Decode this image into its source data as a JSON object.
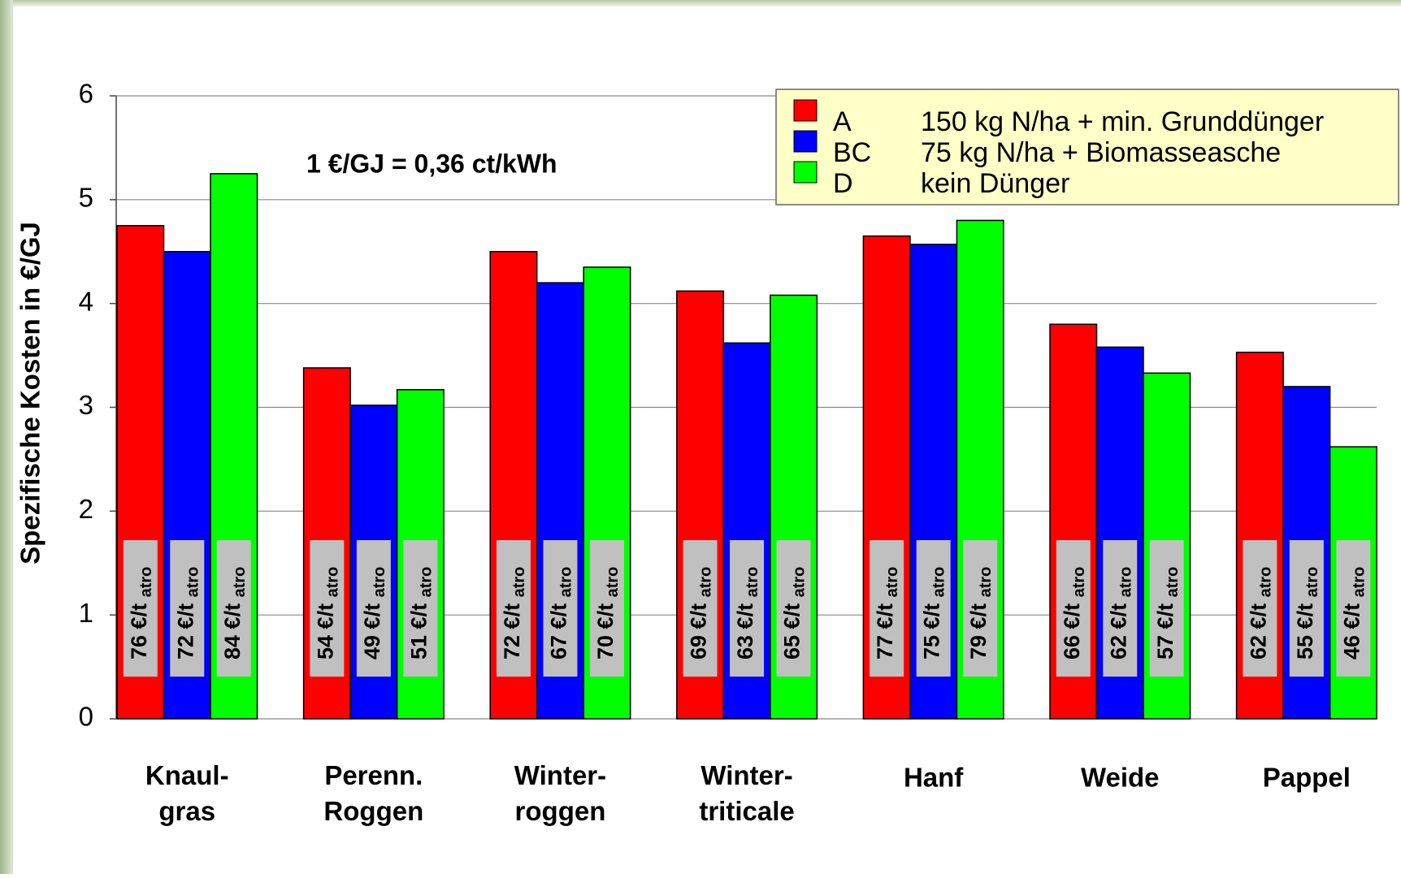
{
  "chart_data": {
    "type": "bar",
    "y_label": "Spezifische Kosten in €/GJ",
    "annotation": "1 €/GJ = 0,36 ct/kWh",
    "categories": [
      "Knaul-\ngras",
      "Perenn.\nRoggen",
      "Winter-\nroggen",
      "Winter-\ntriticale",
      "Hanf",
      "Weide",
      "Pappel"
    ],
    "series": [
      {
        "name": "A",
        "description": "150 kg N/ha + min. Grunddünger",
        "color": "#ff0000",
        "values": [
          4.75,
          3.38,
          4.5,
          4.12,
          4.65,
          3.8,
          3.53
        ],
        "prices": [
          76,
          54,
          72,
          69,
          77,
          66,
          62
        ]
      },
      {
        "name": "BC",
        "description": "75 kg N/ha + Biomasseasche",
        "color": "#0000ff",
        "values": [
          4.5,
          3.02,
          4.2,
          3.62,
          4.57,
          3.58,
          3.2
        ],
        "prices": [
          72,
          49,
          67,
          63,
          75,
          62,
          55
        ]
      },
      {
        "name": "D",
        "description": "kein Dünger",
        "color": "#00ff00",
        "values": [
          5.25,
          3.17,
          4.35,
          4.08,
          4.8,
          3.33,
          2.62
        ],
        "prices": [
          84,
          51,
          70,
          65,
          79,
          57,
          46
        ]
      }
    ],
    "price_unit": "€/t",
    "price_subscript": "atro",
    "ylim": [
      0,
      6
    ],
    "yticks": [
      0,
      1,
      2,
      3,
      4,
      5,
      6
    ],
    "grid": true
  }
}
